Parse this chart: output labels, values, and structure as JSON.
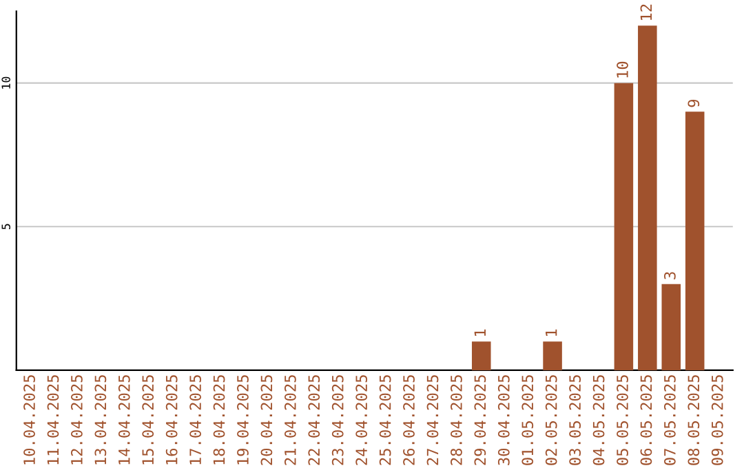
{
  "chart_data": {
    "type": "bar",
    "categories": [
      "10.04.2025",
      "11.04.2025",
      "12.04.2025",
      "13.04.2025",
      "14.04.2025",
      "15.04.2025",
      "16.04.2025",
      "17.04.2025",
      "18.04.2025",
      "19.04.2025",
      "20.04.2025",
      "21.04.2025",
      "22.04.2025",
      "23.04.2025",
      "24.04.2025",
      "25.04.2025",
      "26.04.2025",
      "27.04.2025",
      "28.04.2025",
      "29.04.2025",
      "30.04.2025",
      "01.05.2025",
      "02.05.2025",
      "03.05.2025",
      "04.05.2025",
      "05.05.2025",
      "06.05.2025",
      "07.05.2025",
      "08.05.2025",
      "09.05.2025"
    ],
    "values": [
      0,
      0,
      0,
      0,
      0,
      0,
      0,
      0,
      0,
      0,
      0,
      0,
      0,
      0,
      0,
      0,
      0,
      0,
      0,
      1,
      0,
      0,
      1,
      0,
      0,
      10,
      12,
      3,
      9,
      0
    ],
    "value_labels": [
      null,
      null,
      null,
      null,
      null,
      null,
      null,
      null,
      null,
      null,
      null,
      null,
      null,
      null,
      null,
      null,
      null,
      null,
      null,
      "1",
      null,
      null,
      "1",
      null,
      null,
      "10",
      "12",
      "3",
      "9",
      null
    ],
    "color": "#a0522d",
    "ylim": [
      0,
      12.5
    ],
    "yticks": [
      5,
      10
    ],
    "grid": "y"
  }
}
